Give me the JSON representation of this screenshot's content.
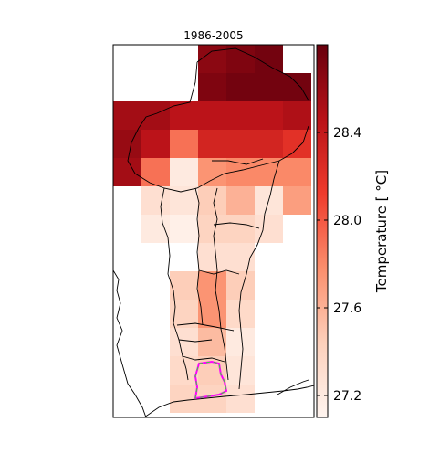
{
  "chart_data": {
    "type": "heatmap",
    "title": "1986-2005",
    "colorbar": {
      "label": "Temperature [ °C]",
      "range": [
        27.1,
        28.8
      ],
      "ticks": [
        27.2,
        27.6,
        28.0,
        28.4
      ],
      "tick_labels": [
        "27.2",
        "27.6",
        "28.0",
        "28.4"
      ],
      "colors": [
        "#fff5f0",
        "#fdd0bb",
        "#fb8e6c",
        "#ef3b2c",
        "#b91218",
        "#67000d"
      ]
    },
    "grid": {
      "x_start": 124,
      "cell_w": 31,
      "y_start": 49,
      "cell_h": 31,
      "nodata": null,
      "values": [
        [
          null,
          null,
          null,
          28.65,
          28.7,
          28.75,
          null
        ],
        [
          null,
          null,
          null,
          28.7,
          28.75,
          28.75,
          28.75
        ],
        [
          28.55,
          28.55,
          28.45,
          28.45,
          28.45,
          28.45,
          28.5
        ],
        [
          28.6,
          28.45,
          27.9,
          28.3,
          28.3,
          28.3,
          28.2
        ],
        [
          28.55,
          27.9,
          27.2,
          27.75,
          27.8,
          27.8,
          27.8
        ],
        [
          null,
          27.3,
          27.25,
          27.45,
          27.6,
          27.25,
          27.7
        ],
        [
          null,
          27.2,
          27.15,
          27.4,
          27.4,
          27.3,
          null
        ],
        [
          null,
          null,
          null,
          27.3,
          27.3,
          null,
          null
        ],
        [
          null,
          null,
          27.45,
          27.75,
          27.45,
          null,
          null
        ],
        [
          null,
          null,
          27.4,
          27.75,
          27.35,
          null,
          null
        ],
        [
          null,
          null,
          27.3,
          27.55,
          27.2,
          null,
          null
        ],
        [
          null,
          null,
          27.35,
          27.45,
          27.25,
          null,
          null
        ],
        [
          null,
          null,
          27.4,
          27.4,
          27.3,
          null,
          null
        ]
      ]
    }
  }
}
